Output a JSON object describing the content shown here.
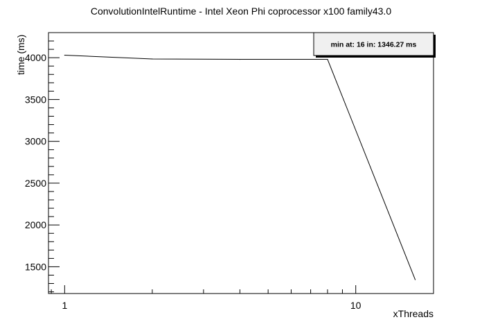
{
  "chart_data": {
    "type": "line",
    "title": "ConvolutionIntelRuntime - Intel Xeon Phi coprocessor x100 family43.0",
    "xlabel": "xThreads",
    "ylabel": "time (ms)",
    "x_scale": "log",
    "xlim": [
      0.88,
      18.5
    ],
    "ylim": [
      1180,
      4300
    ],
    "grid": false,
    "legend": "none",
    "x_major_ticks": [
      {
        "value": 1,
        "label": "1"
      },
      {
        "value": 10,
        "label": "10"
      }
    ],
    "y_major_ticks": [
      {
        "value": 1500,
        "label": "1500"
      },
      {
        "value": 2000,
        "label": "2000"
      },
      {
        "value": 2500,
        "label": "2500"
      },
      {
        "value": 3000,
        "label": "3000"
      },
      {
        "value": 3500,
        "label": "3500"
      },
      {
        "value": 4000,
        "label": "4000"
      }
    ],
    "series": [
      {
        "x": [
          1,
          2,
          4,
          8,
          16
        ],
        "y": [
          4030,
          3985,
          3980,
          3980,
          1346.27
        ],
        "color": "#000000"
      }
    ],
    "annotation": {
      "text": "min at: 16 in: 1346.27 ms",
      "position": "top-right"
    }
  }
}
